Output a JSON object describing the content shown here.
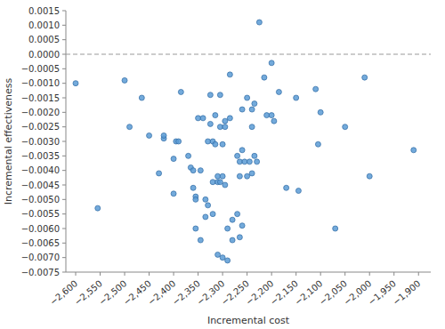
{
  "chart_data": {
    "type": "scatter",
    "xlabel": "Incremental cost",
    "ylabel": "Incremental effectiveness",
    "x": [
      -2600,
      -2555,
      -2500,
      -2490,
      -2465,
      -2450,
      -2430,
      -2420,
      -2420,
      -2400,
      -2400,
      -2395,
      -2390,
      -2385,
      -2370,
      -2365,
      -2360,
      -2360,
      -2355,
      -2355,
      -2355,
      -2350,
      -2345,
      -2345,
      -2340,
      -2335,
      -2335,
      -2330,
      -2330,
      -2325,
      -2325,
      -2320,
      -2320,
      -2320,
      -2315,
      -2315,
      -2310,
      -2310,
      -2310,
      -2305,
      -2305,
      -2305,
      -2300,
      -2300,
      -2300,
      -2295,
      -2295,
      -2295,
      -2290,
      -2290,
      -2285,
      -2285,
      -2280,
      -2280,
      -2270,
      -2270,
      -2265,
      -2265,
      -2265,
      -2260,
      -2260,
      -2260,
      -2255,
      -2250,
      -2250,
      -2245,
      -2240,
      -2240,
      -2240,
      -2235,
      -2235,
      -2230,
      -2225,
      -2215,
      -2210,
      -2200,
      -2200,
      -2195,
      -2185,
      -2170,
      -2150,
      -2145,
      -2110,
      -2105,
      -2100,
      -2070,
      -2050,
      -2010,
      -2000,
      -1910
    ],
    "values": [
      -0.001,
      -0.0053,
      -0.0009,
      -0.0025,
      -0.0015,
      -0.0028,
      -0.0041,
      -0.0029,
      -0.0028,
      -0.0036,
      -0.0048,
      -0.003,
      -0.003,
      -0.0013,
      -0.0035,
      -0.0039,
      -0.004,
      -0.0046,
      -0.0049,
      -0.005,
      -0.006,
      -0.0022,
      -0.004,
      -0.0064,
      -0.0022,
      -0.005,
      -0.0056,
      -0.003,
      -0.0052,
      -0.0014,
      -0.0024,
      -0.003,
      -0.0044,
      -0.0055,
      -0.0021,
      -0.0031,
      -0.0042,
      -0.0044,
      -0.0069,
      -0.0014,
      -0.0025,
      -0.0044,
      -0.0031,
      -0.0042,
      -0.007,
      -0.0023,
      -0.0025,
      -0.0045,
      -0.006,
      -0.0071,
      -0.0007,
      -0.0022,
      -0.0057,
      -0.0064,
      -0.0035,
      -0.0055,
      -0.0037,
      -0.0042,
      -0.0063,
      -0.0019,
      -0.0033,
      -0.0059,
      -0.0037,
      -0.0015,
      -0.0042,
      -0.0037,
      -0.0019,
      -0.0025,
      -0.0041,
      -0.0017,
      -0.0035,
      -0.0037,
      0.0011,
      -0.0008,
      -0.0021,
      -0.0003,
      -0.0021,
      -0.0023,
      -0.0013,
      -0.0046,
      -0.0015,
      -0.0047,
      -0.0012,
      -0.0031,
      -0.002,
      -0.006,
      -0.0025,
      -0.0008,
      -0.0042,
      -0.0033
    ],
    "color": "#5b9bd5",
    "marker": "circle",
    "hline": {
      "value": 0,
      "line_style": "dashed",
      "color": "#999999"
    },
    "xlim": [
      -2620,
      -1875
    ],
    "ylim": [
      -0.0075,
      0.0015
    ],
    "xticks": [
      {
        "value": -2600,
        "label": "−2,600"
      },
      {
        "value": -2550,
        "label": "−2,550"
      },
      {
        "value": -2500,
        "label": "−2,500"
      },
      {
        "value": -2450,
        "label": "−2,450"
      },
      {
        "value": -2400,
        "label": "−2,400"
      },
      {
        "value": -2350,
        "label": "−2,350"
      },
      {
        "value": -2300,
        "label": "−2,300"
      },
      {
        "value": -2250,
        "label": "−2,250"
      },
      {
        "value": -2200,
        "label": "−2,200"
      },
      {
        "value": -2150,
        "label": "−2,150"
      },
      {
        "value": -2100,
        "label": "−2,100"
      },
      {
        "value": -2050,
        "label": "−2,050"
      },
      {
        "value": -2000,
        "label": "−2,000"
      },
      {
        "value": -1950,
        "label": "−1,950"
      },
      {
        "value": -1900,
        "label": "−1,900"
      }
    ],
    "yticks": [
      {
        "value": -0.0075,
        "label": "−0.0075"
      },
      {
        "value": -0.007,
        "label": "−0.0070"
      },
      {
        "value": -0.0065,
        "label": "−0.0065"
      },
      {
        "value": -0.006,
        "label": "−0.0060"
      },
      {
        "value": -0.0055,
        "label": "−0.0055"
      },
      {
        "value": -0.005,
        "label": "−0.0050"
      },
      {
        "value": -0.0045,
        "label": "−0.0045"
      },
      {
        "value": -0.004,
        "label": "−0.0040"
      },
      {
        "value": -0.0035,
        "label": "−0.0035"
      },
      {
        "value": -0.003,
        "label": "−0.0030"
      },
      {
        "value": -0.0025,
        "label": "−0.0025"
      },
      {
        "value": -0.002,
        "label": "−0.0020"
      },
      {
        "value": -0.0015,
        "label": "−0.0015"
      },
      {
        "value": -0.001,
        "label": "−0.0010"
      },
      {
        "value": -0.0005,
        "label": "−0.0005"
      },
      {
        "value": 0,
        "label": "0.0000"
      },
      0.0005,
      {
        "value": 0.001,
        "label": "0.0010"
      },
      0.0015
    ],
    "grid": false
  }
}
